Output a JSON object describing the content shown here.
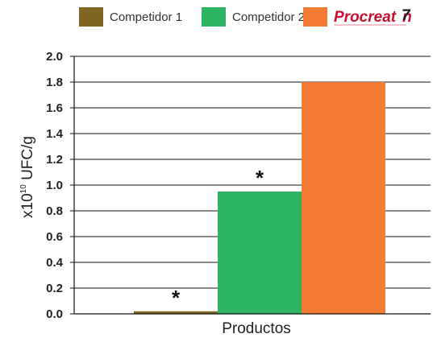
{
  "legend": {
    "items": [
      {
        "label": "Competidor 1",
        "color": "#806622"
      },
      {
        "label": "Competidor 2",
        "color": "#2db463"
      },
      {
        "label": "Procreatin",
        "color": "#f47b33",
        "logo": true,
        "logo_text": "Procreat",
        "logo_text_end": "n",
        "logo_mark": "7"
      }
    ]
  },
  "chart_data": {
    "type": "bar",
    "categories": [
      "Productos"
    ],
    "series": [
      {
        "name": "Competidor 1",
        "values": [
          0.02
        ],
        "color": "#806622",
        "annotation": "*"
      },
      {
        "name": "Competidor 2",
        "values": [
          0.95
        ],
        "color": "#2db463",
        "annotation": "*"
      },
      {
        "name": "Procreatin",
        "values": [
          1.8
        ],
        "color": "#f47b33",
        "annotation": ""
      }
    ],
    "xlabel": "Productos",
    "ylabel_prefix": "x10",
    "ylabel_exponent": "10",
    "ylabel_suffix": " UFC/g",
    "ylim": [
      0,
      2.0
    ],
    "yticks": [
      "0.0",
      "0.2",
      "0.4",
      "0.6",
      "0.8",
      "1.0",
      "1.2",
      "1.4",
      "1.6",
      "1.8",
      "2.0"
    ],
    "grid": true
  }
}
